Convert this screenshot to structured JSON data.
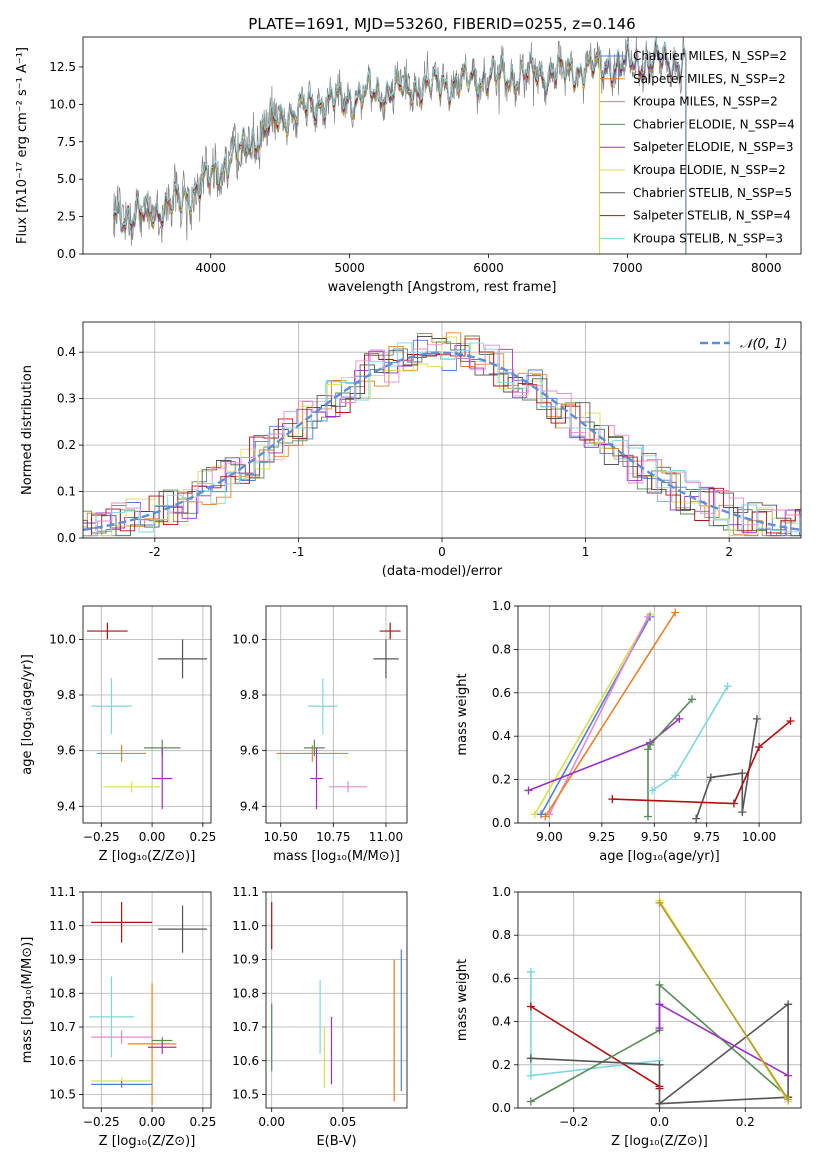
{
  "figure_title": "PLATE=1691, MJD=53260, FIBERID=0255, z=0.146",
  "colors": {
    "chabrier_miles": "#4f7fd6",
    "salpeter_miles": "#e6812a",
    "kroupa_miles": "#b79a2b",
    "chabrier_elodie": "#5a8a5a",
    "salpeter_elodie": "#9b30c4",
    "kroupa_elodie": "#d9e04a",
    "chabrier_stelib": "#555555",
    "salpeter_stelib": "#b01010",
    "kroupa_stelib": "#7fd7dc",
    "pink": "#e58ad0",
    "data_grey": "#808080",
    "normal_curve": "#5b8fd6"
  },
  "chart_data": [
    {
      "id": "spectrum",
      "type": "line",
      "xlabel": "wavelength [Angstrom, rest frame]",
      "ylabel": "Flux [fλ10⁻¹⁷ erg cm⁻² s⁻¹ A⁻¹]",
      "xlim": [
        3080,
        8250
      ],
      "ylim": [
        0,
        14.5
      ],
      "xticks": [
        4000,
        5000,
        6000,
        7000,
        8000
      ],
      "yticks": [
        0.0,
        2.5,
        5.0,
        7.5,
        10.0,
        12.5
      ],
      "grid": false,
      "legend": [
        "Chabrier MILES, N_SSP=2",
        "Salpeter MILES, N_SSP=2",
        "Kroupa MILES, N_SSP=2",
        "Chabrier ELODIE, N_SSP=4",
        "Salpeter ELODIE, N_SSP=3",
        "Kroupa ELODIE, N_SSP=2",
        "Chabrier STELIB, N_SSP=5",
        "Salpeter STELIB, N_SSP=4",
        "Kroupa STELIB, N_SSP=3"
      ],
      "legend_location": "upper right",
      "continuum": {
        "x": [
          3300,
          3500,
          3700,
          3900,
          4100,
          4300,
          4500,
          4700,
          5000,
          5300,
          5600,
          6000,
          6400,
          6800,
          7200
        ],
        "y": [
          2.6,
          2.5,
          3.2,
          4.3,
          6.0,
          7.6,
          9.0,
          9.9,
          10.4,
          10.9,
          11.2,
          11.8,
          12.0,
          12.5,
          12.9
        ]
      }
    },
    {
      "id": "residuals",
      "type": "line",
      "xlabel": "(data-model)/error",
      "ylabel": "Normed distribution",
      "xlim": [
        -2.5,
        2.5
      ],
      "ylim": [
        0,
        0.465
      ],
      "xticks": [
        -2,
        -1,
        0,
        1,
        2
      ],
      "yticks": [
        0.0,
        0.1,
        0.2,
        0.3,
        0.4
      ],
      "grid": true,
      "legend": [
        "𝒩(0, 1)"
      ],
      "legend_location": "upper right"
    },
    {
      "id": "age_vs_Z",
      "type": "scatter",
      "xlabel": "Z [log₁₀(Z/Z⊙)]",
      "ylabel": "age  [log₁₀(age/yr)]",
      "xlim": [
        -0.34,
        0.29
      ],
      "ylim": [
        9.34,
        10.12
      ],
      "xticks": [
        -0.25,
        0.0,
        0.25
      ],
      "xticklabels": [
        "−0.25",
        "0.00",
        "0.25"
      ],
      "yticks": [
        9.4,
        9.6,
        9.8,
        10.0
      ],
      "grid": true,
      "points": [
        {
          "series": "salpeter_stelib",
          "x": -0.22,
          "y": 10.03,
          "xerr": 0.1,
          "yerr": 0.03
        },
        {
          "series": "chabrier_stelib",
          "x": 0.15,
          "y": 9.93,
          "xerr": 0.12,
          "yerr": 0.07
        },
        {
          "series": "kroupa_stelib",
          "x": -0.2,
          "y": 9.76,
          "xerr": 0.1,
          "yerr": 0.1
        },
        {
          "series": "salpeter_miles",
          "x": -0.15,
          "y": 9.59,
          "xerr": 0.12,
          "yerr": 0.03
        },
        {
          "series": "chabrier_elodie",
          "x": 0.05,
          "y": 9.61,
          "xerr": 0.09,
          "yerr": 0.03
        },
        {
          "series": "salpeter_elodie",
          "x": 0.05,
          "y": 9.5,
          "xerr": 0.05,
          "yerr": 0.11
        },
        {
          "series": "kroupa_elodie",
          "x": -0.1,
          "y": 9.47,
          "xerr": 0.14,
          "yerr": 0.02
        }
      ]
    },
    {
      "id": "age_vs_mass",
      "type": "scatter",
      "xlabel": "mass [log₁₀(M/M⊙)]",
      "ylabel": "",
      "xlim": [
        10.43,
        11.1
      ],
      "ylim": [
        9.34,
        10.12
      ],
      "xticks": [
        10.5,
        10.75,
        11.0
      ],
      "xticklabels": [
        "10.50",
        "10.75",
        "11.00"
      ],
      "yticks": [
        9.4,
        9.6,
        9.8,
        10.0
      ],
      "grid": true,
      "points": [
        {
          "series": "salpeter_stelib",
          "x": 11.02,
          "y": 10.03,
          "xerr": 0.05,
          "yerr": 0.03
        },
        {
          "series": "chabrier_stelib",
          "x": 11.0,
          "y": 9.93,
          "xerr": 0.06,
          "yerr": 0.07
        },
        {
          "series": "kroupa_stelib",
          "x": 10.7,
          "y": 9.76,
          "xerr": 0.07,
          "yerr": 0.1
        },
        {
          "series": "salpeter_miles",
          "x": 10.65,
          "y": 9.59,
          "xerr": 0.17,
          "yerr": 0.03
        },
        {
          "series": "chabrier_elodie",
          "x": 10.66,
          "y": 9.61,
          "xerr": 0.05,
          "yerr": 0.03
        },
        {
          "series": "salpeter_elodie",
          "x": 10.67,
          "y": 9.5,
          "xerr": 0.03,
          "yerr": 0.11
        },
        {
          "series": "pink",
          "x": 10.82,
          "y": 9.47,
          "xerr": 0.09,
          "yerr": 0.02
        }
      ]
    },
    {
      "id": "massweight_vs_age",
      "type": "line",
      "xlabel": "age  [log₁₀(age/yr)]",
      "ylabel": "mass weight",
      "xlim": [
        8.85,
        10.2
      ],
      "ylim": [
        0,
        1
      ],
      "xticks": [
        9.0,
        9.25,
        9.5,
        9.75,
        10.0
      ],
      "xticklabels": [
        "9.00",
        "9.25",
        "9.50",
        "9.75",
        "10.00"
      ],
      "yticks": [
        0.0,
        0.2,
        0.4,
        0.6,
        0.8,
        1.0
      ],
      "grid": true,
      "series": [
        {
          "key": "kroupa_elodie",
          "x": [
            8.93,
            9.48
          ],
          "y": [
            0.04,
            0.96
          ]
        },
        {
          "key": "chabrier_miles",
          "x": [
            8.96,
            9.48
          ],
          "y": [
            0.04,
            0.95
          ]
        },
        {
          "key": "pink",
          "x": [
            9.0,
            9.47
          ],
          "y": [
            0.04,
            0.95
          ]
        },
        {
          "key": "salpeter_miles",
          "x": [
            8.98,
            9.6
          ],
          "y": [
            0.03,
            0.97
          ]
        },
        {
          "key": "salpeter_elodie",
          "x": [
            8.9,
            9.48,
            9.62
          ],
          "y": [
            0.15,
            0.37,
            0.48
          ]
        },
        {
          "key": "chabrier_elodie",
          "x": [
            9.47,
            9.47,
            9.48,
            9.68
          ],
          "y": [
            0.03,
            0.34,
            0.36,
            0.57
          ]
        },
        {
          "key": "kroupa_stelib",
          "x": [
            9.49,
            9.6,
            9.85
          ],
          "y": [
            0.15,
            0.22,
            0.63
          ]
        },
        {
          "key": "chabrier_stelib",
          "x": [
            9.7,
            9.77,
            9.92,
            9.92,
            9.99
          ],
          "y": [
            0.02,
            0.21,
            0.23,
            0.05,
            0.48
          ]
        },
        {
          "key": "salpeter_stelib",
          "x": [
            9.3,
            9.88,
            10.0,
            10.15
          ],
          "y": [
            0.11,
            0.09,
            0.35,
            0.47
          ]
        }
      ]
    },
    {
      "id": "mass_vs_Z",
      "type": "scatter",
      "xlabel": "Z [log₁₀(Z/Z⊙)]",
      "ylabel": "mass [log₁₀(M/M⊙)]",
      "xlim": [
        -0.34,
        0.29
      ],
      "ylim": [
        10.46,
        11.1
      ],
      "xticks": [
        -0.25,
        0.0,
        0.25
      ],
      "xticklabels": [
        "−0.25",
        "0.00",
        "0.25"
      ],
      "yticks": [
        10.5,
        10.6,
        10.7,
        10.8,
        10.9,
        11.0,
        11.1
      ],
      "yticklabels": [
        "10.5",
        "10.6",
        "10.7",
        "10.8",
        "10.9",
        "11.0",
        "11.1"
      ],
      "grid": true,
      "points": [
        {
          "series": "salpeter_stelib",
          "x": -0.15,
          "y": 11.01,
          "xerr": 0.15,
          "yerr": 0.06
        },
        {
          "series": "chabrier_stelib",
          "x": 0.15,
          "y": 10.99,
          "xerr": 0.12,
          "yerr": 0.07
        },
        {
          "series": "kroupa_stelib",
          "x": -0.2,
          "y": 10.73,
          "xerr": 0.11,
          "yerr": 0.12
        },
        {
          "series": "salpeter_miles",
          "x": 0.0,
          "y": 10.65,
          "xerr": 0.12,
          "yerr": 0.18
        },
        {
          "series": "pink",
          "x": -0.15,
          "y": 10.67,
          "xerr": 0.15,
          "yerr": 0.02
        },
        {
          "series": "salpeter_elodie",
          "x": 0.05,
          "y": 10.64,
          "xerr": 0.07,
          "yerr": 0.02
        },
        {
          "series": "chabrier_elodie",
          "x": 0.05,
          "y": 10.66,
          "xerr": 0.05,
          "yerr": 0.01
        },
        {
          "series": "kroupa_elodie",
          "x": -0.15,
          "y": 10.54,
          "xerr": 0.15,
          "yerr": 0.01
        },
        {
          "series": "chabrier_miles",
          "x": -0.15,
          "y": 10.53,
          "xerr": 0.15,
          "yerr": 0.01
        }
      ]
    },
    {
      "id": "mass_vs_ebv",
      "type": "scatter",
      "xlabel": "E(B-V)",
      "ylabel": "",
      "xlim": [
        -0.004,
        0.095
      ],
      "ylim": [
        10.46,
        11.1
      ],
      "xticks": [
        0.0,
        0.05
      ],
      "xticklabels": [
        "0.00",
        "0.05"
      ],
      "yticks": [
        10.5,
        10.6,
        10.7,
        10.8,
        10.9,
        11.0,
        11.1
      ],
      "yticklabels": [
        "10.5",
        "10.6",
        "10.7",
        "10.8",
        "10.9",
        "11.0",
        "11.1"
      ],
      "grid": true,
      "points": [
        {
          "series": "salpeter_stelib",
          "x": 0.0,
          "y": 11.0,
          "xerr": 0.0,
          "yerr": 0.07
        },
        {
          "series": "chabrier_elodie",
          "x": 0.0,
          "y": 10.67,
          "xerr": 0.0,
          "yerr": 0.1
        },
        {
          "series": "kroupa_stelib",
          "x": 0.034,
          "y": 10.73,
          "xerr": 0.0,
          "yerr": 0.11
        },
        {
          "series": "kroupa_elodie",
          "x": 0.037,
          "y": 10.61,
          "xerr": 0.0,
          "yerr": 0.09
        },
        {
          "series": "salpeter_elodie",
          "x": 0.042,
          "y": 10.63,
          "xerr": 0.0,
          "yerr": 0.1
        },
        {
          "series": "salpeter_miles",
          "x": 0.086,
          "y": 10.69,
          "xerr": 0.0,
          "yerr": 0.21
        },
        {
          "series": "chabrier_miles",
          "x": 0.091,
          "y": 10.72,
          "xerr": 0.0,
          "yerr": 0.21
        }
      ]
    },
    {
      "id": "massweight_vs_Z",
      "type": "line",
      "xlabel": "Z [log₁₀(Z/Z⊙)]",
      "ylabel": "mass weight",
      "xlim": [
        -0.33,
        0.33
      ],
      "ylim": [
        0,
        1
      ],
      "xticks": [
        -0.2,
        0.0,
        0.2
      ],
      "xticklabels": [
        "−0.2",
        "0.0",
        "0.2"
      ],
      "yticks": [
        0.0,
        0.2,
        0.4,
        0.6,
        0.8,
        1.0
      ],
      "grid": true,
      "series": [
        {
          "key": "kroupa_stelib",
          "x": [
            -0.3,
            -0.3,
            0.0,
            -0.3,
            -0.3
          ],
          "y": [
            0.63,
            0.15,
            0.22,
            0.15,
            0.63
          ]
        },
        {
          "key": "salpeter_stelib",
          "x": [
            -0.3,
            0.0,
            0.0
          ],
          "y": [
            0.47,
            0.1,
            0.09
          ]
        },
        {
          "key": "chabrier_elodie",
          "x": [
            -0.3,
            0.0,
            0.0,
            0.3
          ],
          "y": [
            0.03,
            0.36,
            0.57,
            0.05
          ]
        },
        {
          "key": "chabrier_stelib",
          "x": [
            -0.3,
            0.0,
            0.0,
            0.3,
            0.3,
            0.0
          ],
          "y": [
            0.23,
            0.2,
            0.02,
            0.48,
            0.05,
            0.02
          ]
        },
        {
          "key": "salpeter_elodie",
          "x": [
            0.0,
            0.0,
            0.3
          ],
          "y": [
            0.37,
            0.48,
            0.15
          ]
        },
        {
          "key": "kroupa_elodie",
          "x": [
            0.0,
            0.3
          ],
          "y": [
            0.96,
            0.03
          ]
        },
        {
          "key": "kroupa_miles",
          "x": [
            0.0,
            0.3
          ],
          "y": [
            0.95,
            0.04
          ]
        }
      ]
    }
  ]
}
